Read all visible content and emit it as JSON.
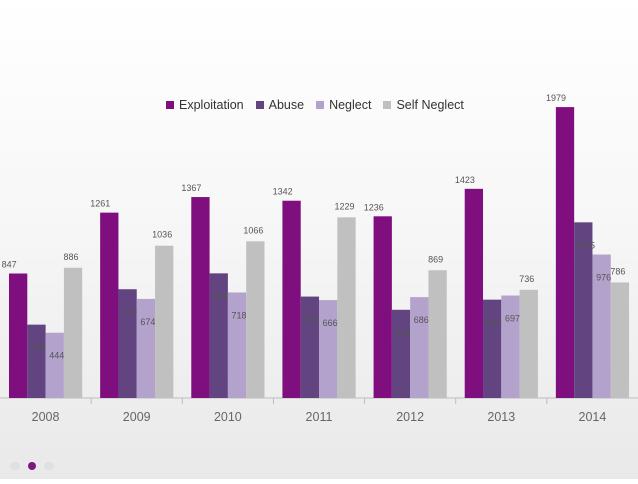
{
  "chart_data": {
    "type": "bar",
    "categories": [
      "2008",
      "2009",
      "2010",
      "2011",
      "2012",
      "2013",
      "2014"
    ],
    "series": [
      {
        "name": "Exploitation",
        "color": "#7f0f7e",
        "values": [
          847,
          1261,
          1367,
          1342,
          1236,
          1423,
          1979
        ]
      },
      {
        "name": "Abuse",
        "color": "#624481",
        "values": [
          499,
          740,
          848,
          690,
          600,
          669,
          1195
        ]
      },
      {
        "name": "Neglect",
        "color": "#b3a2cb",
        "values": [
          444,
          674,
          718,
          666,
          686,
          697,
          976
        ]
      },
      {
        "name": "Self Neglect",
        "color": "#c0c0c0",
        "values": [
          886,
          1036,
          1066,
          1229,
          869,
          736,
          786
        ]
      }
    ],
    "ylim": [
      0,
      2000
    ],
    "legend": "top-center",
    "grid": false
  },
  "pagination": {
    "count": 3,
    "active": 1
  }
}
